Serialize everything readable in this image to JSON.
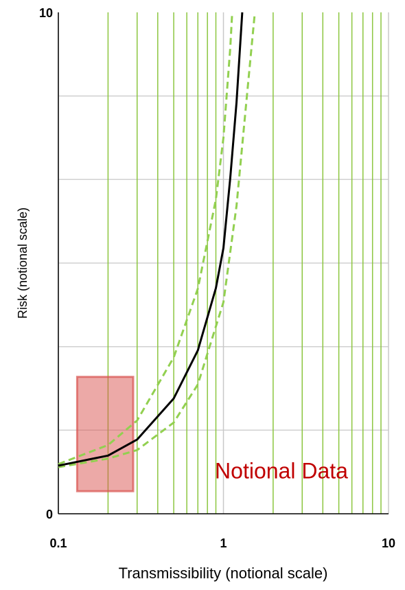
{
  "chart_data": {
    "type": "line",
    "xlabel": "Transmissibility (notional scale)",
    "ylabel": "Risk (notional scale)",
    "xscale": "log",
    "xlim": [
      0.1,
      10
    ],
    "ylim": [
      0,
      10
    ],
    "xticks": [
      0.1,
      1,
      10
    ],
    "yticks": [
      0,
      10
    ],
    "xminor": [
      0.2,
      0.3,
      0.4,
      0.5,
      0.6,
      0.7,
      0.8,
      0.9,
      2,
      3,
      4,
      5,
      6,
      7,
      8,
      9
    ],
    "minor_color": "#8cc63f",
    "ygrid": [
      1.667,
      3.333,
      5,
      6.667,
      8.333
    ],
    "series": [
      {
        "color": "#92d050",
        "dashed": true,
        "x": [
          0.1,
          0.2,
          0.3,
          0.5,
          0.7,
          0.9,
          1,
          1.1,
          1.13
        ],
        "values": [
          0.99,
          1.37,
          1.86,
          3.12,
          4.49,
          6.27,
          7.5,
          9.29,
          10
        ]
      },
      {
        "color": "#92d050",
        "dashed": true,
        "x": [
          0.1,
          0.2,
          0.3,
          0.5,
          0.7,
          1,
          1.2,
          1.4,
          1.55
        ],
        "values": [
          0.93,
          1.1,
          1.27,
          1.82,
          2.58,
          4.22,
          6.14,
          8.47,
          10
        ]
      },
      {
        "color": "#000000",
        "dashed": false,
        "x": [
          0.1,
          0.2,
          0.3,
          0.5,
          0.7,
          0.9,
          1,
          1.1,
          1.2,
          1.3
        ],
        "values": [
          0.96,
          1.16,
          1.48,
          2.3,
          3.26,
          4.5,
          5.3,
          6.7,
          8.2,
          10
        ]
      }
    ],
    "region": {
      "x": [
        0.13,
        0.284
      ],
      "y": [
        0.45,
        2.73
      ],
      "color": "#d9534f"
    },
    "annotation": {
      "text": "Notional Data",
      "color": "#c00000"
    }
  }
}
